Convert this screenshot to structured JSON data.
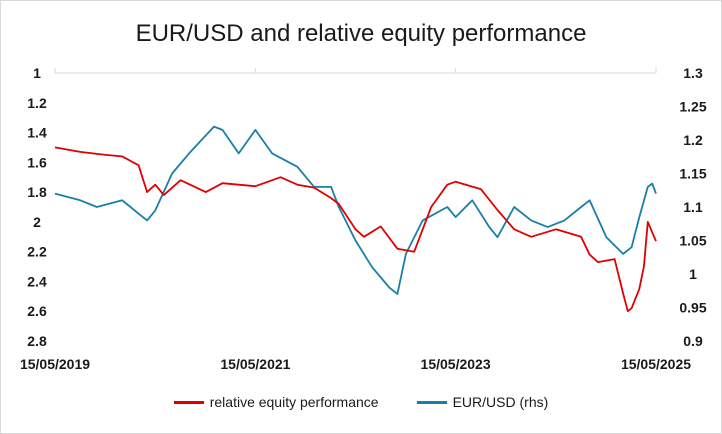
{
  "chart_data": {
    "type": "line",
    "title": "EUR/USD and relative equity performance",
    "x_tick_labels": [
      "15/05/2019",
      "15/05/2021",
      "15/05/2023",
      "15/05/2025"
    ],
    "x_range": [
      "2019-05-15",
      "2025-05-15"
    ],
    "y_left": {
      "ticks": [
        "1",
        "1.2",
        "1.4",
        "1.6",
        "1.8",
        "2",
        "2.2",
        "2.4",
        "2.6",
        "2.8"
      ],
      "range": [
        1.0,
        2.8
      ],
      "inverted": true
    },
    "y_right": {
      "ticks": [
        "1.3",
        "1.25",
        "1.2",
        "1.15",
        "1.1",
        "1.05",
        "1",
        "0.95",
        "0.9"
      ],
      "range": [
        0.9,
        1.3
      ]
    },
    "gridlines": false,
    "legend_position": "bottom",
    "series": [
      {
        "name": "relative equity performance",
        "axis": "left",
        "color": "#e00000",
        "points": [
          [
            "2019-05-15",
            1.5
          ],
          [
            "2019-08-15",
            1.53
          ],
          [
            "2019-11-15",
            1.55
          ],
          [
            "2020-01-15",
            1.56
          ],
          [
            "2020-03-15",
            1.62
          ],
          [
            "2020-04-15",
            1.8
          ],
          [
            "2020-05-15",
            1.75
          ],
          [
            "2020-06-15",
            1.82
          ],
          [
            "2020-08-15",
            1.72
          ],
          [
            "2020-11-15",
            1.8
          ],
          [
            "2021-01-15",
            1.74
          ],
          [
            "2021-05-15",
            1.76
          ],
          [
            "2021-08-15",
            1.7
          ],
          [
            "2021-10-15",
            1.75
          ],
          [
            "2021-12-15",
            1.77
          ],
          [
            "2022-02-15",
            1.84
          ],
          [
            "2022-03-15",
            1.88
          ],
          [
            "2022-05-15",
            2.05
          ],
          [
            "2022-06-15",
            2.1
          ],
          [
            "2022-08-15",
            2.03
          ],
          [
            "2022-10-15",
            2.18
          ],
          [
            "2022-12-15",
            2.2
          ],
          [
            "2023-02-15",
            1.9
          ],
          [
            "2023-04-15",
            1.75
          ],
          [
            "2023-05-15",
            1.73
          ],
          [
            "2023-08-15",
            1.78
          ],
          [
            "2023-10-15",
            1.92
          ],
          [
            "2023-12-15",
            2.05
          ],
          [
            "2024-02-15",
            2.1
          ],
          [
            "2024-05-15",
            2.05
          ],
          [
            "2024-08-15",
            2.1
          ],
          [
            "2024-09-15",
            2.22
          ],
          [
            "2024-10-15",
            2.27
          ],
          [
            "2024-12-15",
            2.25
          ],
          [
            "2025-01-15",
            2.48
          ],
          [
            "2025-02-01",
            2.6
          ],
          [
            "2025-02-15",
            2.58
          ],
          [
            "2025-03-15",
            2.45
          ],
          [
            "2025-04-01",
            2.3
          ],
          [
            "2025-04-15",
            2.0
          ],
          [
            "2025-05-01",
            2.07
          ],
          [
            "2025-05-15",
            2.13
          ]
        ]
      },
      {
        "name": "EUR/USD (rhs)",
        "axis": "right",
        "color": "#1a7fa8",
        "points": [
          [
            "2019-05-15",
            1.12
          ],
          [
            "2019-08-15",
            1.11
          ],
          [
            "2019-10-15",
            1.1
          ],
          [
            "2020-01-15",
            1.11
          ],
          [
            "2020-03-15",
            1.09
          ],
          [
            "2020-04-15",
            1.08
          ],
          [
            "2020-05-15",
            1.095
          ],
          [
            "2020-07-15",
            1.15
          ],
          [
            "2020-09-15",
            1.18
          ],
          [
            "2020-12-15",
            1.22
          ],
          [
            "2021-01-15",
            1.215
          ],
          [
            "2021-03-15",
            1.18
          ],
          [
            "2021-05-15",
            1.215
          ],
          [
            "2021-07-15",
            1.18
          ],
          [
            "2021-10-15",
            1.16
          ],
          [
            "2021-12-15",
            1.13
          ],
          [
            "2022-02-15",
            1.13
          ],
          [
            "2022-03-15",
            1.1
          ],
          [
            "2022-05-15",
            1.05
          ],
          [
            "2022-07-15",
            1.01
          ],
          [
            "2022-09-15",
            0.98
          ],
          [
            "2022-10-15",
            0.97
          ],
          [
            "2022-11-15",
            1.03
          ],
          [
            "2023-01-15",
            1.08
          ],
          [
            "2023-04-15",
            1.1
          ],
          [
            "2023-05-15",
            1.085
          ],
          [
            "2023-07-15",
            1.11
          ],
          [
            "2023-09-15",
            1.07
          ],
          [
            "2023-10-15",
            1.055
          ],
          [
            "2023-12-15",
            1.1
          ],
          [
            "2024-02-15",
            1.08
          ],
          [
            "2024-04-15",
            1.07
          ],
          [
            "2024-06-15",
            1.08
          ],
          [
            "2024-08-15",
            1.1
          ],
          [
            "2024-09-15",
            1.11
          ],
          [
            "2024-11-15",
            1.055
          ],
          [
            "2025-01-15",
            1.03
          ],
          [
            "2025-02-15",
            1.04
          ],
          [
            "2025-03-15",
            1.085
          ],
          [
            "2025-04-15",
            1.13
          ],
          [
            "2025-05-01",
            1.135
          ],
          [
            "2025-05-15",
            1.12
          ]
        ]
      }
    ]
  }
}
